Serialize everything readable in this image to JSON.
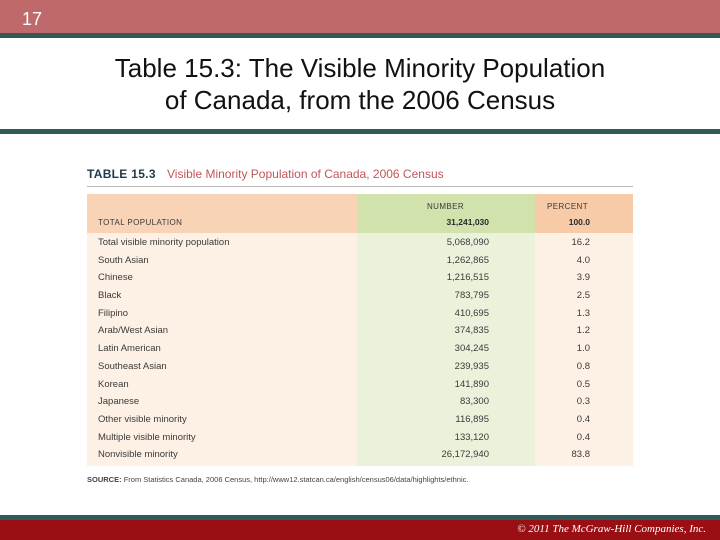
{
  "slide": {
    "number": "17",
    "title_line1": "Table 15.3:  The Visible Minority Population",
    "title_line2": "of Canada, from the 2006 Census",
    "copyright": "© 2011 The McGraw-Hill Companies, Inc."
  },
  "table": {
    "label": "TABLE 15.3",
    "caption": "Visible Minority Population of Canada, 2006 Census",
    "header": {
      "total_label": "TOTAL POPULATION",
      "number_label": "NUMBER",
      "percent_label": "PERCENT",
      "total_number": "31,241,030",
      "total_percent": "100.0"
    },
    "rows": [
      {
        "name": "Total visible minority population",
        "number": "5,068,090",
        "percent": "16.2"
      },
      {
        "name": "South Asian",
        "number": "1,262,865",
        "percent": "4.0"
      },
      {
        "name": "Chinese",
        "number": "1,216,515",
        "percent": "3.9"
      },
      {
        "name": "Black",
        "number": "783,795",
        "percent": "2.5"
      },
      {
        "name": "Filipino",
        "number": "410,695",
        "percent": "1.3"
      },
      {
        "name": "Arab/West Asian",
        "number": "374,835",
        "percent": "1.2"
      },
      {
        "name": "Latin American",
        "number": "304,245",
        "percent": "1.0"
      },
      {
        "name": "Southeast Asian",
        "number": "239,935",
        "percent": "0.8"
      },
      {
        "name": "Korean",
        "number": "141,890",
        "percent": "0.5"
      },
      {
        "name": "Japanese",
        "number": "83,300",
        "percent": "0.3"
      },
      {
        "name": "Other visible minority",
        "number": "116,895",
        "percent": "0.4"
      },
      {
        "name": "Multiple visible minority",
        "number": "133,120",
        "percent": "0.4"
      },
      {
        "name": "Nonvisible minority",
        "number": "26,172,940",
        "percent": "83.8"
      }
    ],
    "source_label": "SOURCE:",
    "source_text": "From Statistics Canada, 2006 Census, http://www12.statcan.ca/english/census06/data/highlights/ethnic."
  },
  "colors": {
    "header_bar": "#c0696a",
    "teal_rule": "#2e5a5a",
    "footer_bar": "#9a0f14",
    "number_column": "#eaf2dc",
    "header_band": "#f8d3b5"
  }
}
